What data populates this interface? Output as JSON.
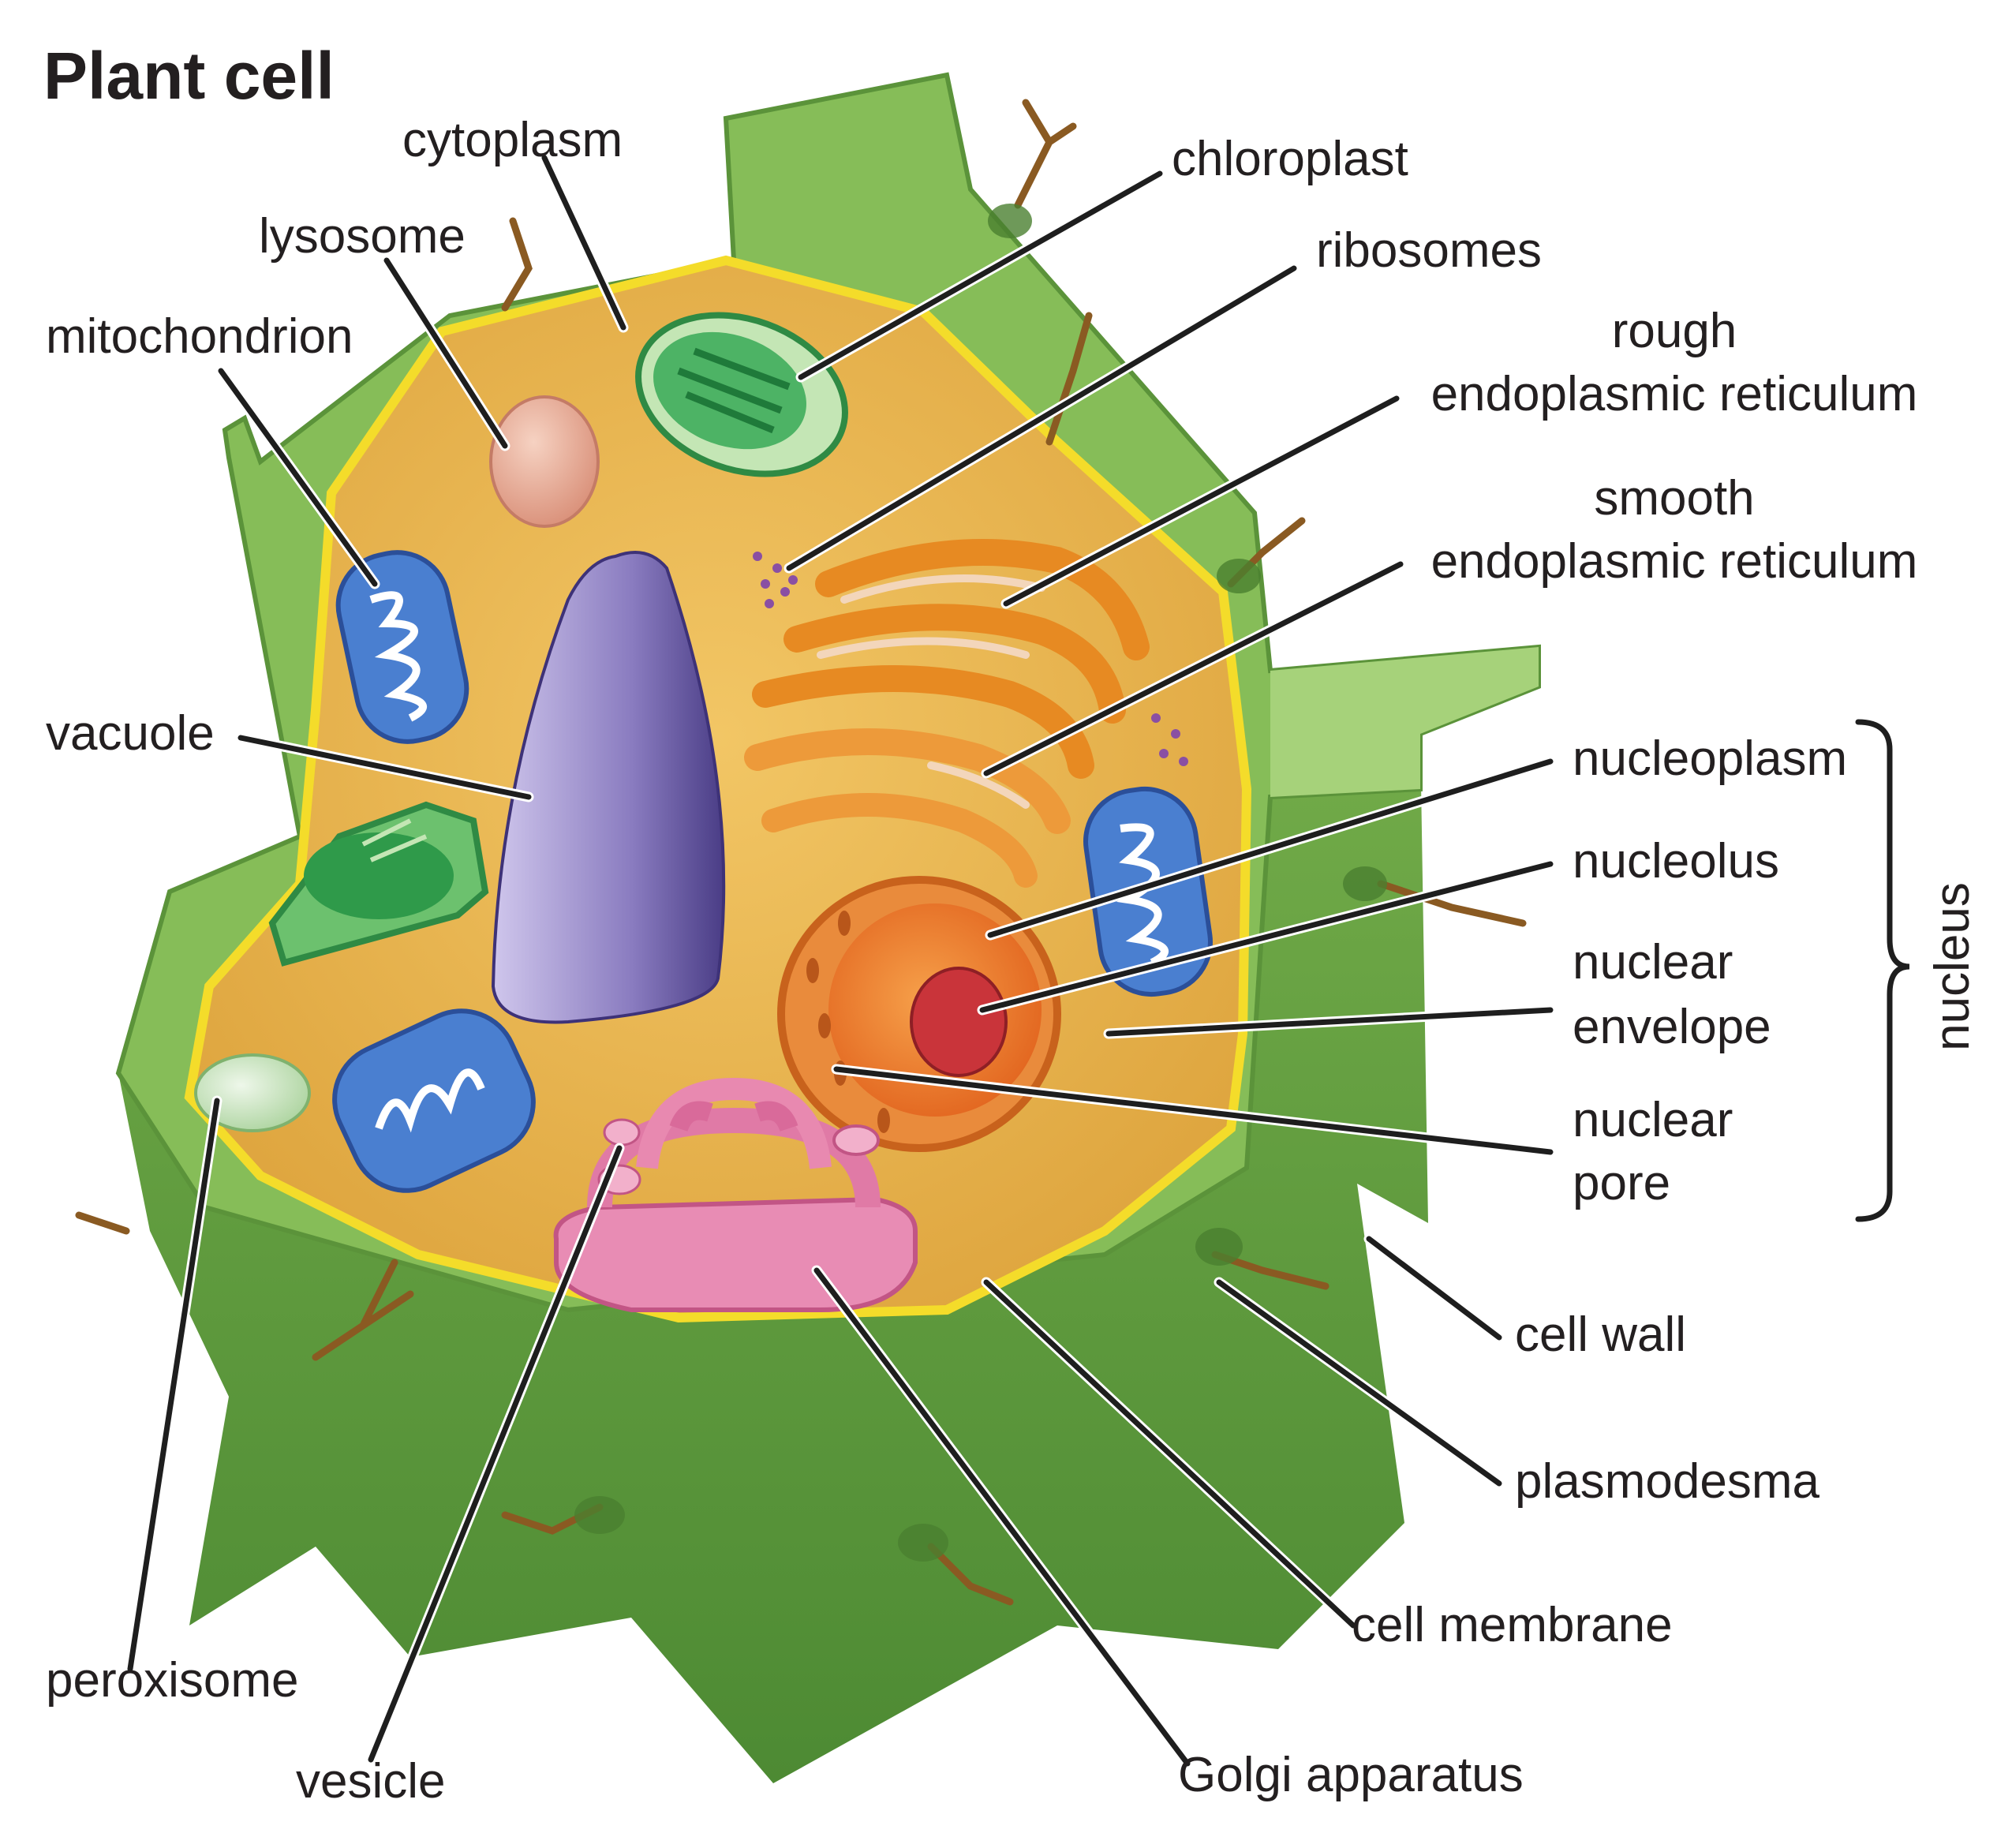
{
  "title": "Plant cell",
  "labels": {
    "cytoplasm": "cytoplasm",
    "lysosome": "lysosome",
    "mitochondrion": "mitochondrion",
    "vacuole": "vacuole",
    "peroxisome": "peroxisome",
    "vesicle": "vesicle",
    "chloroplast": "chloroplast",
    "ribosomes": "ribosomes",
    "rough_er_line1": "rough",
    "rough_er_line2": "endoplasmic reticulum",
    "smooth_er_line1": "smooth",
    "smooth_er_line2": "endoplasmic reticulum",
    "nucleoplasm": "nucleoplasm",
    "nucleolus": "nucleolus",
    "nuclear_envelope_line1": "nuclear",
    "nuclear_envelope_line2": "envelope",
    "nuclear_pore_line1": "nuclear",
    "nuclear_pore_line2": "pore",
    "nucleus": "nucleus",
    "cell_wall": "cell wall",
    "plasmodesma": "plasmodesma",
    "cell_membrane": "cell membrane",
    "golgi_apparatus": "Golgi apparatus"
  },
  "colors": {
    "cell_wall": "#5f9a3c",
    "cell_wall_top": "#8cc25e",
    "cytoplasm": "#e9b04a",
    "membrane": "#f4dc2a",
    "vacuole": "#8a7cbf",
    "mitochondrion": "#3f73c8",
    "chloroplast": "#3ea55a",
    "lysosome": "#e2a891",
    "peroxisome": "#c8e2c0",
    "golgi": "#e07aa6",
    "nucleus": "#ef7a2a",
    "nucleolus": "#c9343a",
    "er": "#e78a22",
    "ribosome": "#8a4fa3",
    "plasmodesma": "#8a5a22"
  }
}
